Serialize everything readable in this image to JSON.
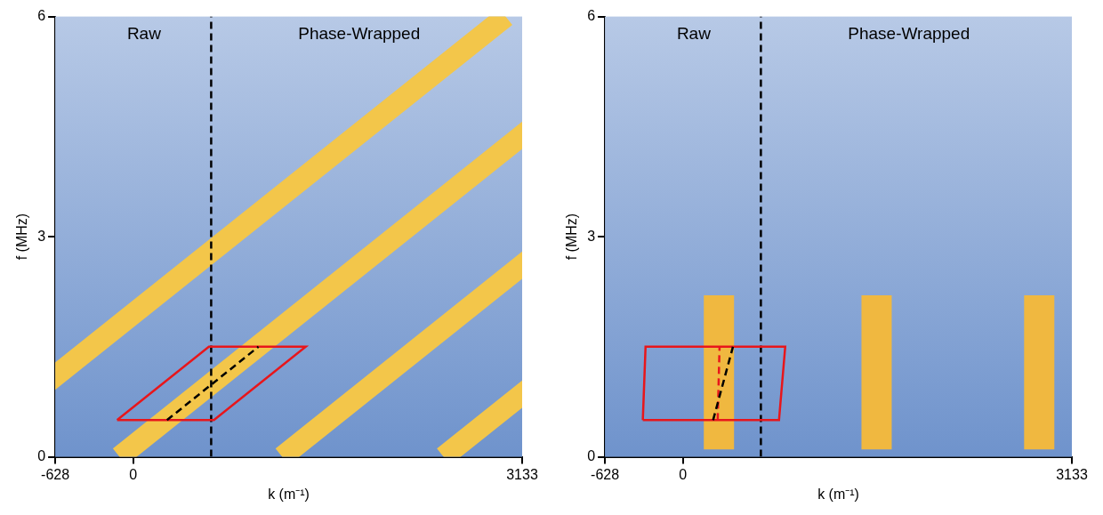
{
  "chart_data": [
    {
      "type": "line",
      "x_label": "k (m⁻¹)",
      "y_label": "f (MHz)",
      "xlim": [
        -628,
        3133
      ],
      "xticks": [
        -628,
        0,
        3133
      ],
      "ylim": [
        0,
        6
      ],
      "yticks": [
        0,
        3,
        6
      ],
      "grid": false,
      "annotations": [
        {
          "text": "Raw",
          "x": 87,
          "y": 5.75
        },
        {
          "text": "Phase-Wrapped",
          "x": 1820,
          "y": 5.75
        }
      ],
      "series": [
        {
          "color": "#f3c64a",
          "line_style": "solid",
          "x": [
            -1442,
            3000
          ],
          "values": [
            0,
            6
          ]
        },
        {
          "color": "#f3c64a",
          "line_style": "solid",
          "x": [
            -110,
            4330
          ],
          "values": [
            0,
            6
          ]
        },
        {
          "color": "#f3c64a",
          "line_style": "solid",
          "x": [
            1200,
            5640
          ],
          "values": [
            0,
            6
          ]
        },
        {
          "color": "#f3c64a",
          "line_style": "solid",
          "x": [
            2500,
            6940
          ],
          "values": [
            0,
            6
          ]
        },
        {
          "color": "#000000",
          "line_style": "dashed",
          "x": [
            628,
            628
          ],
          "values": [
            0,
            6
          ]
        },
        {
          "color": "#e8161b",
          "line_style": "solid",
          "x": [
            -130,
            650,
            1390,
            610,
            -130
          ],
          "values": [
            0.5,
            0.5,
            1.5,
            1.5,
            0.5
          ]
        },
        {
          "color": "#000000",
          "line_style": "dashed",
          "x": [
            272,
            1009
          ],
          "values": [
            0.5,
            1.5
          ]
        }
      ]
    },
    {
      "type": "line",
      "x_label": "k (m⁻¹)",
      "y_label": "f (MHz)",
      "xlim": [
        -628,
        3133
      ],
      "xticks": [
        -628,
        0,
        3133
      ],
      "ylim": [
        0,
        6
      ],
      "yticks": [
        0,
        3,
        6
      ],
      "grid": false,
      "annotations": [
        {
          "text": "Raw",
          "x": 87,
          "y": 5.75
        },
        {
          "text": "Phase-Wrapped",
          "x": 1820,
          "y": 5.75
        }
      ],
      "series": [
        {
          "color": "#f0b840",
          "line_style": "solid",
          "x": [
            290,
            290
          ],
          "values": [
            0.1,
            2.2
          ]
        },
        {
          "color": "#f0b840",
          "line_style": "solid",
          "x": [
            1560,
            1560
          ],
          "values": [
            0.1,
            2.2
          ]
        },
        {
          "color": "#f0b840",
          "line_style": "solid",
          "x": [
            2870,
            2870
          ],
          "values": [
            0.1,
            2.2
          ]
        },
        {
          "color": "#000000",
          "line_style": "dashed",
          "x": [
            628,
            628
          ],
          "values": [
            0,
            6
          ]
        },
        {
          "color": "#e8161b",
          "line_style": "solid",
          "x": [
            -323,
            774,
            824,
            -301,
            -323
          ],
          "values": [
            0.5,
            0.5,
            1.5,
            1.5,
            0.5
          ]
        },
        {
          "color": "#e8161b",
          "line_style": "dashed",
          "x": [
            280,
            295
          ],
          "values": [
            0.5,
            1.5
          ]
        },
        {
          "color": "#000000",
          "line_style": "dashed",
          "x": [
            243,
            403
          ],
          "values": [
            0.5,
            1.5
          ]
        }
      ]
    }
  ]
}
